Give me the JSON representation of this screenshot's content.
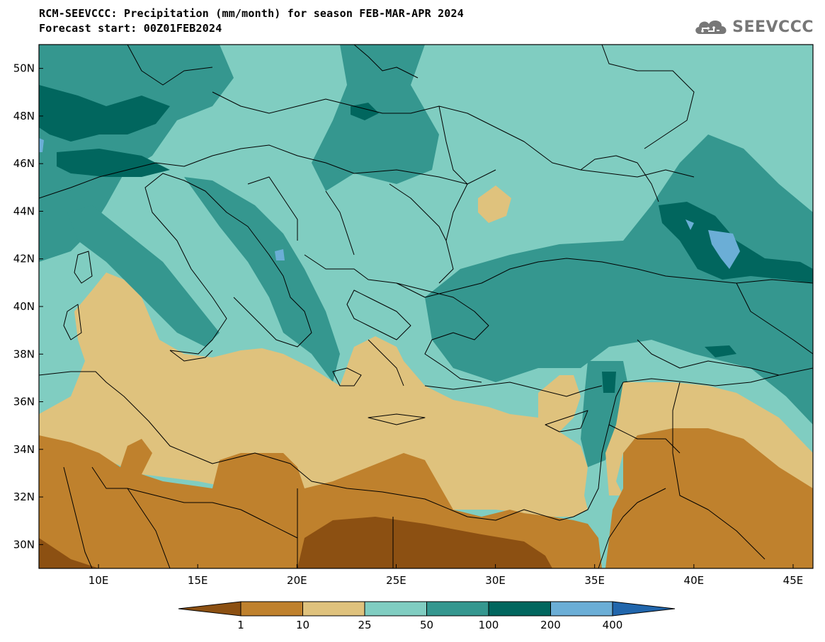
{
  "header": {
    "title_line1": "RCM-SEEVCCC: Precipitation (mm/month) for season FEB-MAR-APR 2024",
    "title_line2": "Forecast start: 00Z01FEB2024"
  },
  "logo": {
    "text": "SEEVCCC",
    "icon": "cloud-icon",
    "color": "#777777"
  },
  "map": {
    "lat_ticks": [
      "50N",
      "48N",
      "46N",
      "44N",
      "42N",
      "40N",
      "38N",
      "36N",
      "34N",
      "32N",
      "30N"
    ],
    "lon_ticks": [
      "10E",
      "15E",
      "20E",
      "25E",
      "30E",
      "35E",
      "40E",
      "45E"
    ],
    "lon_range": [
      7,
      46
    ],
    "lat_range": [
      29,
      51
    ],
    "colors": {
      "lt1": "#8c5012",
      "1to10": "#bf812d",
      "10to25": "#dfc27d",
      "25to50": "#80cdc1",
      "50to100": "#35978f",
      "100to200": "#01665e",
      "200to400": "#6baed6",
      "gt400": "#2166ac",
      "border": "#000000"
    }
  },
  "colorbar": {
    "labels": [
      "1",
      "10",
      "25",
      "50",
      "100",
      "200",
      "400"
    ],
    "colors": [
      "#8c5012",
      "#bf812d",
      "#dfc27d",
      "#80cdc1",
      "#35978f",
      "#01665e",
      "#6baed6",
      "#2166ac"
    ]
  }
}
